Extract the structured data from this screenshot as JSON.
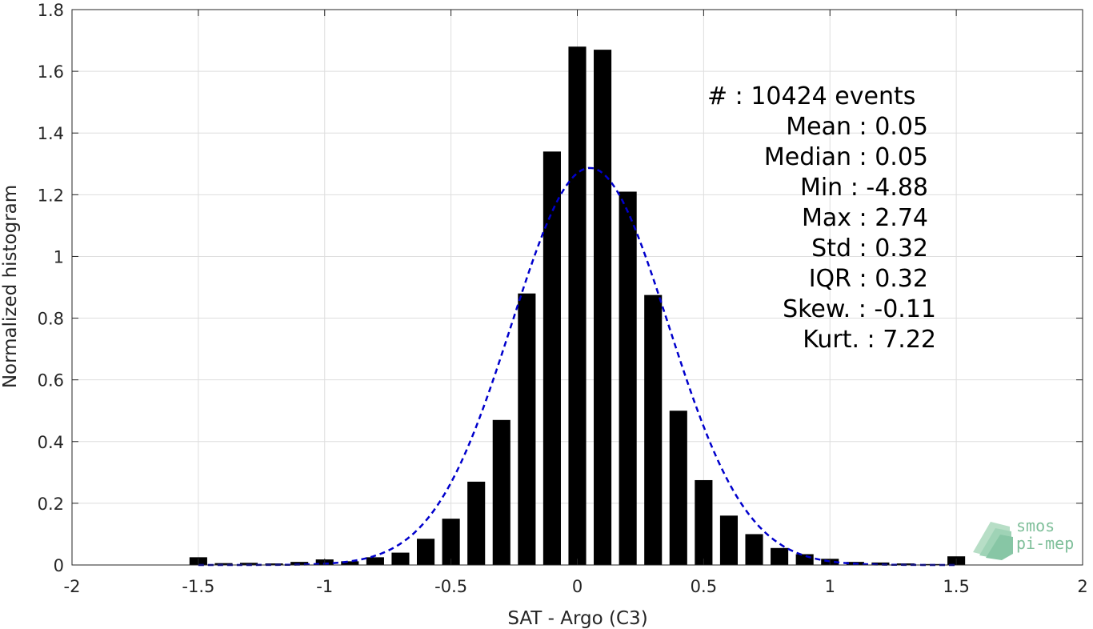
{
  "chart_data": {
    "type": "bar",
    "xlabel": "SAT - Argo (C3)",
    "ylabel": "Normalized histogram",
    "xlim": [
      -2,
      2
    ],
    "ylim": [
      0,
      1.8
    ],
    "x_ticks": [
      -2,
      -1.5,
      -1,
      -0.5,
      0,
      0.5,
      1,
      1.5,
      2
    ],
    "x_tick_labels": [
      "-2",
      "-1.5",
      "-1",
      "-0.5",
      "0",
      "0.5",
      "1",
      "1.5",
      "2"
    ],
    "y_ticks": [
      0,
      0.2,
      0.4,
      0.6,
      0.8,
      1,
      1.2,
      1.4,
      1.6,
      1.8
    ],
    "y_tick_labels": [
      "0",
      "0.2",
      "0.4",
      "0.6",
      "0.8",
      "1",
      "1.2",
      "1.4",
      "1.6",
      "1.8"
    ],
    "grid": true,
    "bar_color": "#000000",
    "fit_color": "#0000cc",
    "bars": {
      "x": [
        -1.5,
        -1.4,
        -1.3,
        -1.2,
        -1.1,
        -1.0,
        -0.9,
        -0.8,
        -0.7,
        -0.6,
        -0.5,
        -0.4,
        -0.3,
        -0.2,
        -0.1,
        0.0,
        0.1,
        0.2,
        0.3,
        0.4,
        0.5,
        0.6,
        0.7,
        0.8,
        0.9,
        1.0,
        1.1,
        1.2,
        1.3,
        1.4,
        1.5
      ],
      "values": [
        0.025,
        0.006,
        0.007,
        0.005,
        0.01,
        0.018,
        0.012,
        0.025,
        0.04,
        0.085,
        0.15,
        0.27,
        0.47,
        0.88,
        1.34,
        1.68,
        1.67,
        1.21,
        0.875,
        0.5,
        0.275,
        0.16,
        0.1,
        0.055,
        0.035,
        0.02,
        0.01,
        0.008,
        0.005,
        0.003,
        0.028
      ]
    },
    "fit": {
      "style": "dashed",
      "mean": 0.05,
      "std": 0.31,
      "x_range": [
        -1.5,
        1.5
      ]
    },
    "stats": {
      "count": "#  : 10424 events",
      "mean": "Mean : 0.05",
      "median": "Median : 0.05",
      "min": "Min : -4.88",
      "max": "Max : 2.74",
      "std": "Std : 0.32",
      "iqr": "IQR : 0.32",
      "skew": "Skew. : -0.11",
      "kurt": "Kurt. : 7.22"
    }
  },
  "logo": {
    "line1": "smos",
    "line2": "pi-mep"
  }
}
